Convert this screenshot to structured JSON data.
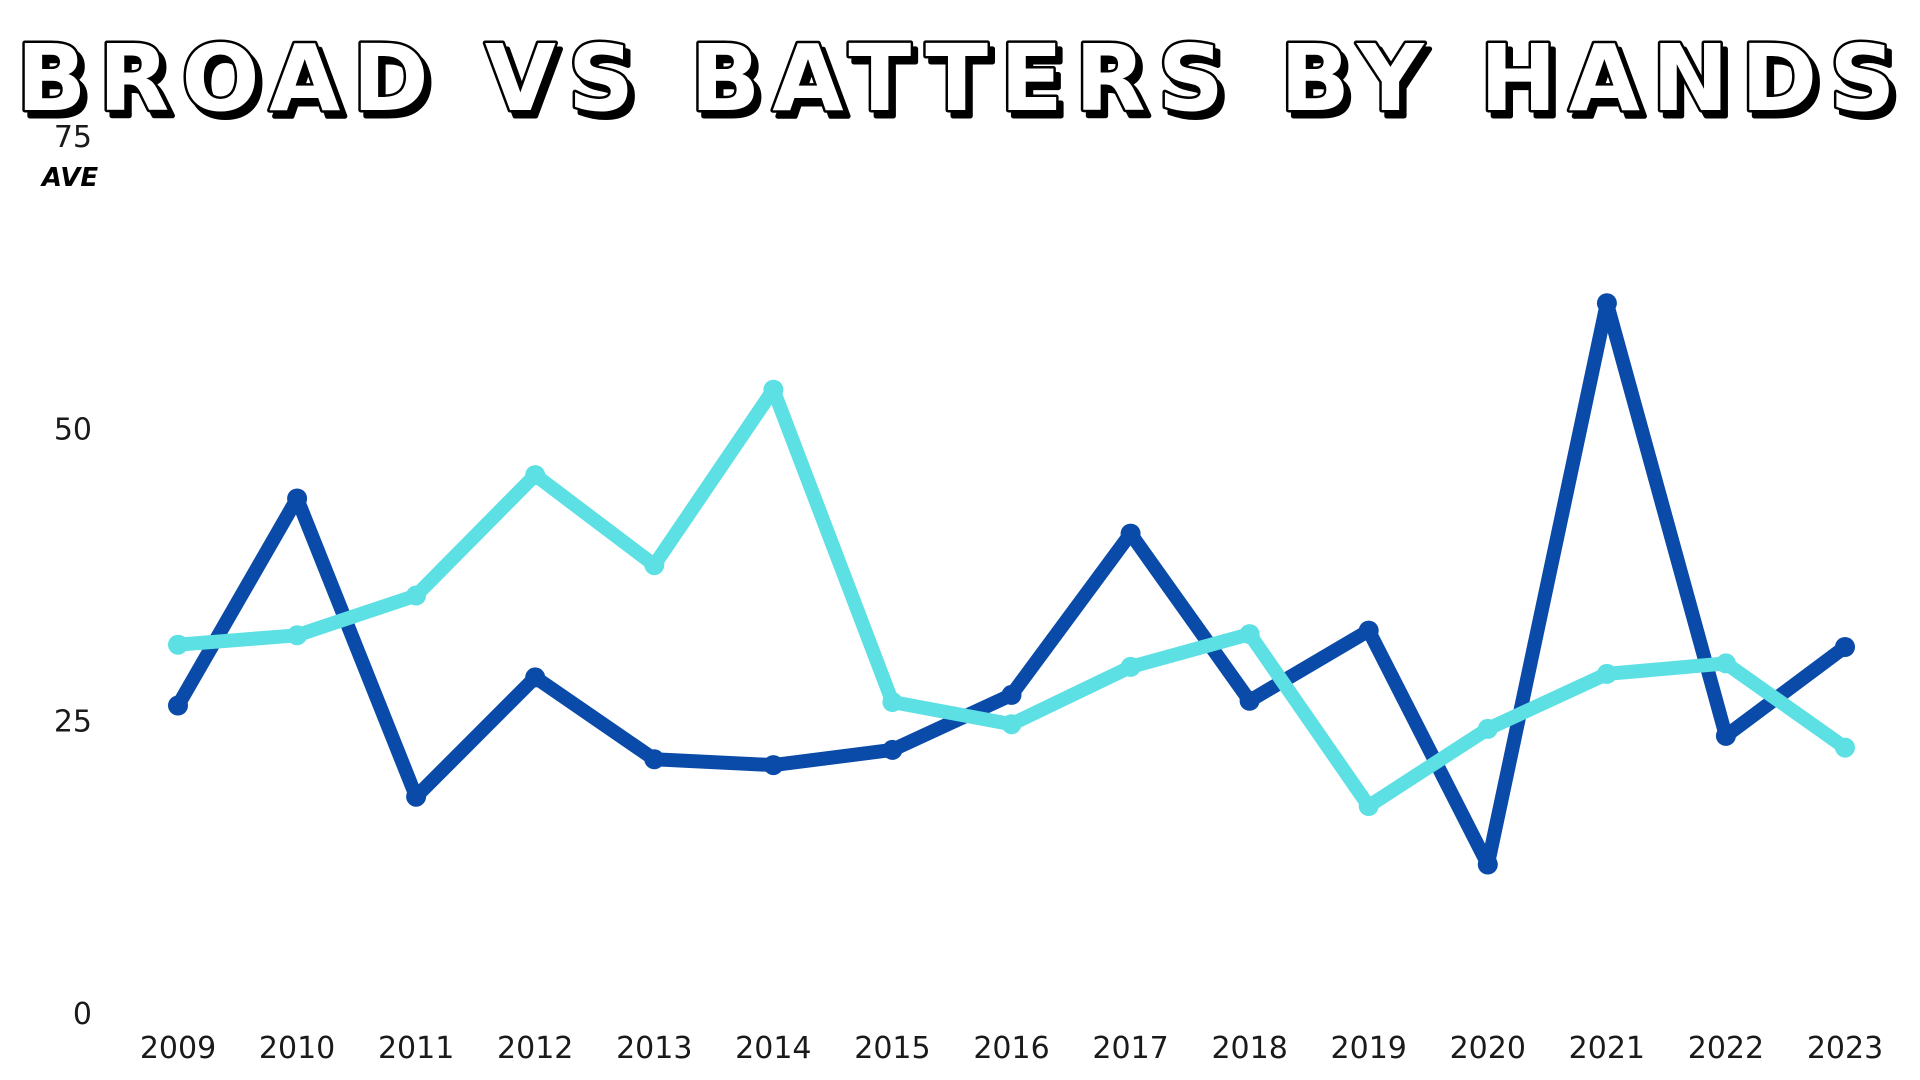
{
  "chart_data": {
    "type": "line",
    "title": "BROAD VS BATTERS BY HANDS",
    "ylabel": "AVE",
    "xlabel": "",
    "ylim": [
      0,
      75
    ],
    "yticks": [
      "0",
      "25",
      "50",
      "75"
    ],
    "categories": [
      "2009",
      "2010",
      "2011",
      "2012",
      "2013",
      "2014",
      "2015",
      "2016",
      "2017",
      "2018",
      "2019",
      "2020",
      "2021",
      "2022",
      "2023"
    ],
    "grid": false,
    "legend": "none",
    "series": [
      {
        "color": "#0a4aa8",
        "values": [
          26.3,
          44.0,
          18.5,
          28.7,
          21.7,
          21.2,
          22.5,
          27.2,
          41.0,
          26.7,
          32.7,
          12.7,
          60.7,
          23.7,
          31.3
        ]
      },
      {
        "color": "#5ce0e4",
        "values": [
          31.5,
          32.3,
          35.7,
          46.0,
          38.3,
          53.3,
          26.6,
          24.7,
          29.6,
          32.4,
          17.7,
          24.3,
          29.0,
          29.9,
          22.7
        ]
      }
    ]
  }
}
